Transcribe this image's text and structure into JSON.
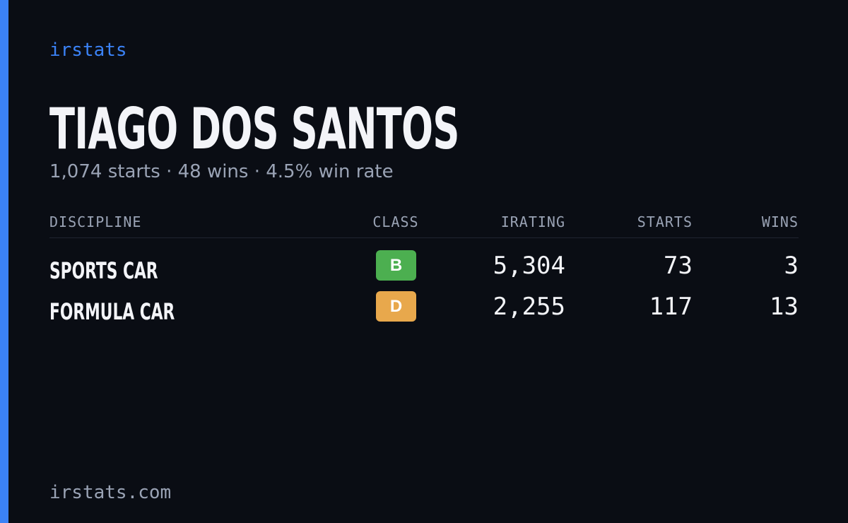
{
  "brand": "irstats",
  "title": "TIAGO DOS SANTOS",
  "subtitle": "1,074 starts · 48 wins · 4.5% win rate",
  "table": {
    "headers": [
      "DISCIPLINE",
      "CLASS",
      "IRATING",
      "STARTS",
      "WINS"
    ],
    "rows": [
      {
        "discipline": "SPORTS CAR",
        "class": "B",
        "class_color": "#4caf50",
        "irating": "5,304",
        "starts": "73",
        "wins": "3"
      },
      {
        "discipline": "FORMULA CAR",
        "class": "D",
        "class_color": "#e8a84c",
        "irating": "2,255",
        "starts": "117",
        "wins": "13"
      }
    ]
  },
  "footer": "irstats.com"
}
